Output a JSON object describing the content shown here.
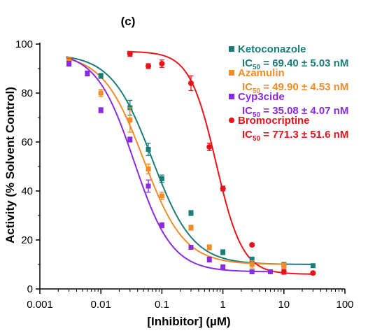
{
  "chart_data": {
    "type": "scatter",
    "panel_label": "(c)",
    "xlabel": "[Inhibitor] (µM)",
    "ylabel": "Activity (% Solvent Control)",
    "xscale": "log",
    "xlim": [
      0.001,
      100
    ],
    "ylim": [
      0,
      100
    ],
    "x_ticks": [
      "0.001",
      "0.01",
      "0.1",
      "1",
      "10",
      "100"
    ],
    "y_ticks": [
      "0",
      "20",
      "40",
      "60",
      "80",
      "100"
    ],
    "grid": false,
    "legend_position": "top-right",
    "series": [
      {
        "name": "Ketoconazole",
        "ic50_label": "IC",
        "ic50_sub": "50",
        "ic50_value": " = 69.40 ± 5.03 nM",
        "color": "#1a7d7a",
        "marker": "square",
        "fit": {
          "top": 96,
          "bottom": 10,
          "ic50_uM": 0.0694,
          "hill": 1.3
        },
        "x": [
          0.003,
          0.01,
          0.03,
          0.06,
          0.1,
          0.3,
          1,
          3,
          10,
          30
        ],
        "y": [
          93,
          87,
          74,
          57,
          45,
          31,
          15,
          12,
          10,
          9.5
        ],
        "err": [
          1.5,
          1.0,
          3.0,
          2.5,
          1.5,
          1.0,
          1.0,
          1.0,
          0.5,
          0.5
        ]
      },
      {
        "name": "Azamulin",
        "ic50_label": "IC",
        "ic50_sub": "50",
        "ic50_value": " = 49.90 ± 4.53 nM",
        "color": "#f28c28",
        "marker": "square",
        "fit": {
          "top": 96,
          "bottom": 10,
          "ic50_uM": 0.0499,
          "hill": 1.3
        },
        "x": [
          0.003,
          0.01,
          0.03,
          0.06,
          0.1,
          0.3,
          0.6,
          3,
          10
        ],
        "y": [
          93,
          80,
          69,
          49,
          38,
          25,
          17,
          10,
          9.5
        ],
        "err": [
          1.5,
          1.5,
          5.0,
          2.0,
          1.5,
          1.0,
          1.0,
          1.5,
          1.0
        ]
      },
      {
        "name": "Cyp3cide",
        "ic50_label": "IC",
        "ic50_sub": "50",
        "ic50_value": " = 35.08 ± 4.07 nM",
        "color": "#8a2be2",
        "marker": "square",
        "fit": {
          "top": 97,
          "bottom": 7,
          "ic50_uM": 0.03508,
          "hill": 1.4
        },
        "x": [
          0.003,
          0.006,
          0.01,
          0.03,
          0.06,
          0.1,
          0.3,
          0.6,
          1,
          3,
          6
        ],
        "y": [
          92,
          88,
          73,
          61,
          42,
          26,
          17,
          12,
          9,
          7,
          7
        ],
        "err": [
          1.0,
          1.0,
          1.0,
          1.0,
          2.5,
          1.0,
          0.5,
          1.0,
          0.5,
          0.5,
          0.5
        ]
      },
      {
        "name": "Bromocriptine",
        "ic50_label": "IC",
        "ic50_sub": "50",
        "ic50_value": " = 771.3 ± 51.6 nM",
        "color": "#e8141a",
        "marker": "circle",
        "fit": {
          "top": 97,
          "bottom": 6,
          "ic50_uM": 0.7713,
          "hill": 2.0
        },
        "x": [
          0.03,
          0.06,
          0.1,
          0.3,
          0.6,
          1,
          3,
          10,
          30
        ],
        "y": [
          96,
          91,
          92,
          84,
          58,
          41,
          18,
          7,
          6.5
        ],
        "err": [
          1.0,
          1.0,
          1.5,
          3.0,
          1.5,
          1.0,
          0.5,
          1.0,
          0.5
        ]
      }
    ]
  }
}
